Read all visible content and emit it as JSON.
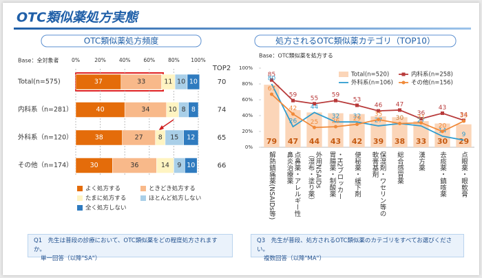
{
  "header": {
    "title": "OTC類似薬処方実態"
  },
  "chart_data": [
    {
      "type": "bar",
      "orientation": "horizontal",
      "stacked": true,
      "title": "OTC類似薬処方頻度",
      "subtitle": "Base：全対象者",
      "categories": [
        "Total(n=575)",
        "内科系（n=281）",
        "外科系（n=120）",
        "その他（n=174）"
      ],
      "series": [
        {
          "name": "よく処方する",
          "color": "#e46c0a",
          "values": [
            37,
            40,
            38,
            30
          ]
        },
        {
          "name": "ときどき処方する",
          "color": "#f8b98a",
          "values": [
            33,
            34,
            27,
            36
          ]
        },
        {
          "name": "たまに処方する",
          "color": "#fff4c2",
          "values": [
            11,
            10,
            8,
            14
          ]
        },
        {
          "name": "ほとんど処方しない",
          "color": "#a9cfe8",
          "values": [
            10,
            8,
            15,
            9
          ]
        },
        {
          "name": "全く処方しない",
          "color": "#2f7bbf",
          "values": [
            10,
            8,
            12,
            10
          ]
        }
      ],
      "top2": {
        "label": "TOP2",
        "values": [
          70,
          74,
          65,
          66
        ]
      },
      "xlim": [
        0,
        100
      ],
      "xticks": [
        {
          "value": 0,
          "label": "0%"
        },
        {
          "value": 20,
          "label": "20%"
        },
        {
          "value": 40,
          "label": "40%"
        },
        {
          "value": 60,
          "label": "60%"
        },
        {
          "value": 80,
          "label": "80%"
        },
        {
          "value": 100,
          "label": "100%"
        }
      ],
      "grid": true,
      "legend": "bottom"
    },
    {
      "type": "combo",
      "title": "処方されるOTC類似薬カテゴリ（TOP10）",
      "subtitle": "Base：OTC類似薬を処方する",
      "categories": [
        "解熱鎮痛薬(NSAIDs等)",
        "鼻炎治療薬\n点鼻薬・アレルギー性",
        "（湿布・塗り薬）\n外用NSAIDs",
        "胃腸薬・制酸薬\n・H2ブロッカー",
        "便秘薬・緩下剤",
        "軟膏基剤\n保湿剤・ワセリン等の",
        "総合感冒薬",
        "漢方薬",
        "去痰薬・鎮咳薬",
        "点眼薬・眼軟膏"
      ],
      "series": [
        {
          "name": "Total(n=520)",
          "kind": "bar",
          "color": "#fbd5b8",
          "values": [
            79,
            47,
            44,
            43,
            42,
            39,
            38,
            33,
            30,
            29
          ]
        },
        {
          "name": "内科系(n=258)",
          "kind": "line",
          "marker": "square",
          "color": "#b83a3a",
          "values": [
            85,
            59,
            55,
            59,
            53,
            46,
            47,
            36,
            43,
            34
          ]
        },
        {
          "name": "外科系(n=106)",
          "kind": "line",
          "marker": "none",
          "color": "#2e9ccf",
          "values": [
            80,
            26,
            44,
            32,
            32,
            27,
            30,
            27,
            14,
            9
          ]
        },
        {
          "name": "その他(n=156)",
          "kind": "line",
          "marker": "circle",
          "color": "#f08a3a",
          "values": [
            67,
            42,
            25,
            26,
            29,
            35,
            30,
            31,
            20,
            33
          ]
        }
      ],
      "ylim": [
        0,
        100
      ],
      "yticks": [
        {
          "value": 0,
          "label": "0%"
        },
        {
          "value": 20,
          "label": "20%"
        },
        {
          "value": 40,
          "label": "40%"
        },
        {
          "value": 60,
          "label": "60%"
        },
        {
          "value": 80,
          "label": "80%"
        },
        {
          "value": 100,
          "label": "100%"
        }
      ],
      "grid": false,
      "legend": "top-right"
    }
  ],
  "notes": [
    {
      "question": "Q1　先生は普段の診療において、OTC類似薬をどの程度処方されますか。",
      "answer_type": "単一回答（以降\"SA\"）"
    },
    {
      "question": "Q3　先生が普段、処方されるOTC類似薬のカテゴリをすべてお選びください。",
      "answer_type": "複数回答（以降\"MA\"）"
    }
  ]
}
